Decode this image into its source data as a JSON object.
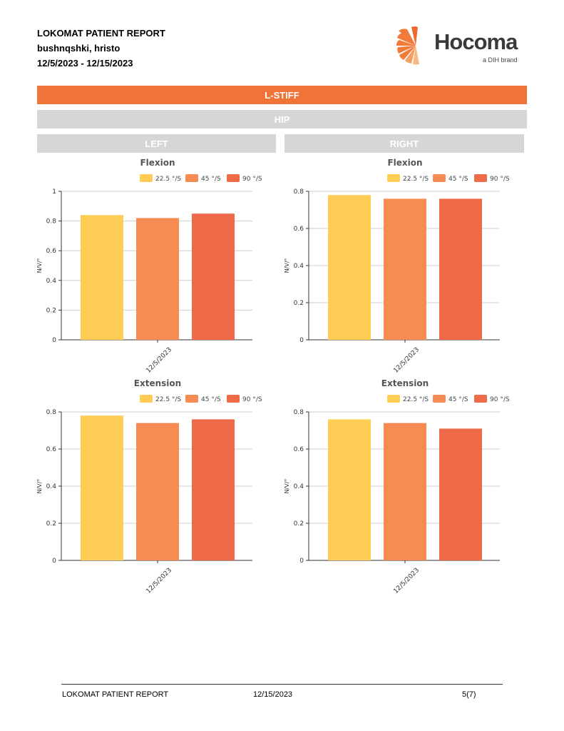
{
  "header": {
    "title": "LOKOMAT PATIENT REPORT",
    "patient": "bushnqshki, hristo",
    "date_range": "12/5/2023 - 12/15/2023"
  },
  "logo": {
    "word": "Hocoma",
    "tag": "a DIH brand"
  },
  "sections": {
    "test": "L-STIFF",
    "joint": "HIP",
    "left": "LEFT",
    "right": "RIGHT"
  },
  "legend_colors": [
    "#ffcc55",
    "#f78c52",
    "#ee6a48"
  ],
  "chart_data": [
    {
      "type": "bar",
      "side": "left",
      "title": "Flexion",
      "categories": [
        "12/5/2023"
      ],
      "series": [
        {
          "name": "22.5 °/S",
          "values": [
            0.84
          ]
        },
        {
          "name": "45 °/S",
          "values": [
            0.82
          ]
        },
        {
          "name": "90 °/S",
          "values": [
            0.85
          ]
        }
      ],
      "ylabel": "N/V/°",
      "ylim": [
        0,
        1
      ],
      "yticks": [
        "0",
        "0.2",
        "0.4",
        "0.6",
        "0.8",
        "1"
      ]
    },
    {
      "type": "bar",
      "side": "right",
      "title": "Flexion",
      "categories": [
        "12/5/2023"
      ],
      "series": [
        {
          "name": "22.5 °/S",
          "values": [
            0.78
          ]
        },
        {
          "name": "45 °/S",
          "values": [
            0.76
          ]
        },
        {
          "name": "90 °/S",
          "values": [
            0.76
          ]
        }
      ],
      "ylabel": "N/V/°",
      "ylim": [
        0,
        0.8
      ],
      "yticks": [
        "0",
        "0.2",
        "0.4",
        "0.6",
        "0.8"
      ]
    },
    {
      "type": "bar",
      "side": "left",
      "title": "Extension",
      "categories": [
        "12/5/2023"
      ],
      "series": [
        {
          "name": "22.5 °/S",
          "values": [
            0.78
          ]
        },
        {
          "name": "45 °/S",
          "values": [
            0.74
          ]
        },
        {
          "name": "90 °/S",
          "values": [
            0.76
          ]
        }
      ],
      "ylabel": "N/V/°",
      "ylim": [
        0,
        0.8
      ],
      "yticks": [
        "0",
        "0.2",
        "0.4",
        "0.6",
        "0.8"
      ]
    },
    {
      "type": "bar",
      "side": "right",
      "title": "Extension",
      "categories": [
        "12/5/2023"
      ],
      "series": [
        {
          "name": "22.5 °/S",
          "values": [
            0.76
          ]
        },
        {
          "name": "45 °/S",
          "values": [
            0.74
          ]
        },
        {
          "name": "90 °/S",
          "values": [
            0.71
          ]
        }
      ],
      "ylabel": "N/V/°",
      "ylim": [
        0,
        0.8
      ],
      "yticks": [
        "0",
        "0.2",
        "0.4",
        "0.6",
        "0.8"
      ]
    }
  ],
  "footer": {
    "title": "LOKOMAT PATIENT REPORT",
    "date": "12/15/2023",
    "page": "5(7)"
  }
}
